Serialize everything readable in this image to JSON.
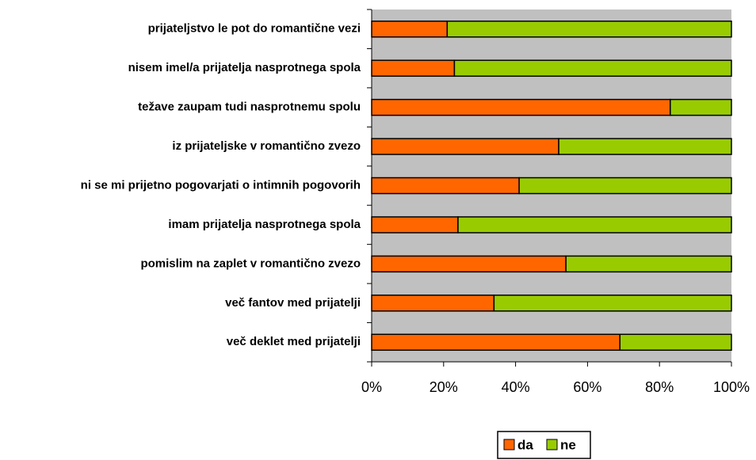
{
  "chart_data": {
    "type": "stacked-bar-horizontal",
    "categories": [
      "prijateljstvo le pot do romantične vezi",
      "nisem imel/a prijatelja nasprotnega spola",
      "težave zaupam tudi nasprotnemu spolu",
      "iz prijateljske v romantično zvezo",
      "ni se mi prijetno pogovarjati o intimnih pogovorih",
      "imam prijatelja nasprotnega spola",
      "pomislim na zaplet v romantično zvezo",
      "več fantov med prijatelji",
      "več deklet med prijatelji"
    ],
    "series": [
      {
        "name": "da",
        "color": "#ff6600",
        "values": [
          21,
          23,
          83,
          52,
          41,
          24,
          54,
          34,
          69
        ]
      },
      {
        "name": "ne",
        "color": "#99cc00",
        "values": [
          79,
          77,
          17,
          48,
          59,
          76,
          46,
          66,
          31
        ]
      }
    ],
    "xlim": [
      0,
      100
    ],
    "xticks": [
      {
        "value": 0,
        "label": "0%"
      },
      {
        "value": 20,
        "label": "20%"
      },
      {
        "value": 40,
        "label": "40%"
      },
      {
        "value": 60,
        "label": "60%"
      },
      {
        "value": 80,
        "label": "80%"
      },
      {
        "value": 100,
        "label": "100%"
      }
    ],
    "legend": "bottom"
  }
}
